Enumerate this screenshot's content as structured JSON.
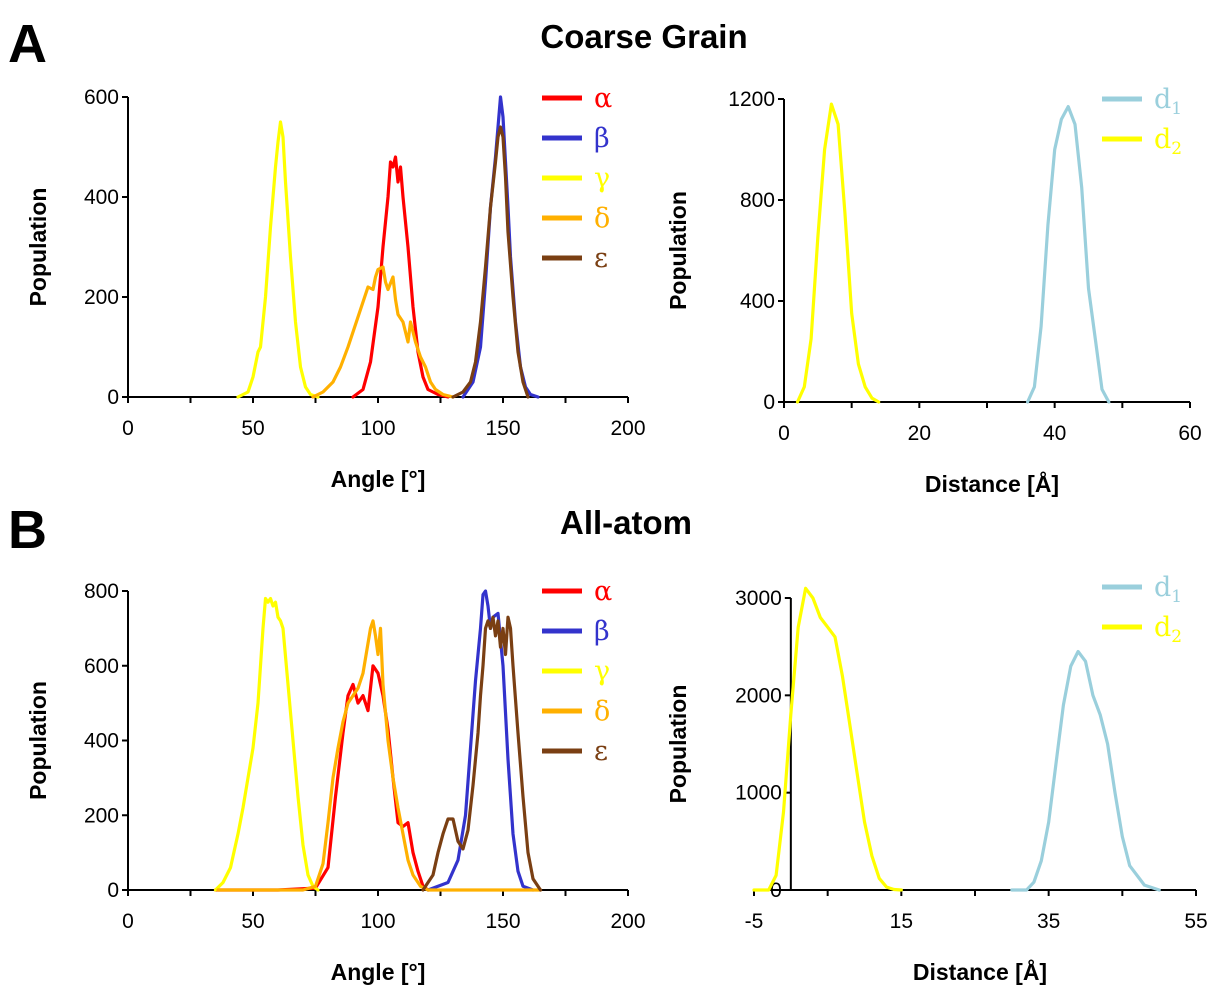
{
  "panels": {
    "A": {
      "letter": "A",
      "title": "Coarse Grain"
    },
    "B": {
      "letter": "B",
      "title": "All-atom"
    }
  },
  "chart_data": [
    {
      "id": "A-angle",
      "type": "line",
      "xlabel": "Angle [°]",
      "ylabel": "Population",
      "xlim": [
        0,
        200
      ],
      "ylim": [
        0,
        600
      ],
      "xticks": [
        0,
        50,
        100,
        150,
        200
      ],
      "yticks": [
        0,
        200,
        400,
        600
      ],
      "grid": false,
      "legend_position": "top-right",
      "series": [
        {
          "name": "α",
          "color": "#ff0000",
          "x": [
            90,
            94,
            97,
            100,
            102,
            104,
            105,
            106,
            107,
            108,
            109,
            110,
            112,
            114,
            116,
            118,
            120,
            124,
            128
          ],
          "y": [
            0,
            15,
            70,
            180,
            300,
            400,
            470,
            460,
            480,
            430,
            460,
            400,
            300,
            180,
            90,
            40,
            15,
            5,
            0
          ]
        },
        {
          "name": "β",
          "color": "#3333cc",
          "x": [
            134,
            138,
            141,
            143,
            145,
            147,
            148,
            149,
            150,
            151,
            152,
            153,
            155,
            157,
            159,
            161,
            164
          ],
          "y": [
            0,
            30,
            100,
            230,
            380,
            480,
            540,
            600,
            560,
            470,
            380,
            280,
            150,
            60,
            20,
            5,
            0
          ]
        },
        {
          "name": "γ",
          "color": "#ffff00",
          "x": [
            44,
            48,
            50,
            52,
            53,
            55,
            57,
            59,
            60,
            61,
            62,
            63,
            65,
            67,
            69,
            71,
            73,
            76
          ],
          "y": [
            0,
            10,
            40,
            90,
            100,
            200,
            340,
            460,
            510,
            550,
            520,
            430,
            280,
            150,
            60,
            20,
            5,
            0
          ]
        },
        {
          "name": "δ",
          "color": "#ffb000",
          "x": [
            74,
            78,
            82,
            85,
            88,
            90,
            92,
            94,
            96,
            98,
            99,
            100,
            102,
            103,
            104,
            106,
            107,
            108,
            110,
            112,
            113,
            115,
            117,
            119,
            121,
            123,
            126,
            130
          ],
          "y": [
            0,
            10,
            30,
            60,
            100,
            130,
            160,
            190,
            220,
            215,
            240,
            255,
            260,
            230,
            215,
            240,
            195,
            165,
            150,
            110,
            150,
            110,
            80,
            60,
            30,
            15,
            5,
            0
          ]
        },
        {
          "name": "ε",
          "color": "#7a3f13",
          "x": [
            130,
            134,
            137,
            139,
            141,
            143,
            145,
            147,
            148,
            149,
            150,
            151,
            152,
            154,
            156,
            158,
            160
          ],
          "y": [
            0,
            10,
            30,
            70,
            150,
            260,
            380,
            470,
            520,
            540,
            520,
            440,
            330,
            200,
            90,
            30,
            0
          ]
        }
      ]
    },
    {
      "id": "A-distance",
      "type": "line",
      "xlabel": "Distance [Å]",
      "ylabel": "Population",
      "xlim": [
        0,
        60
      ],
      "ylim": [
        0,
        1200
      ],
      "xticks": [
        0,
        20,
        40,
        60
      ],
      "yticks": [
        0,
        400,
        800,
        1200
      ],
      "grid": false,
      "legend_position": "top-right",
      "series": [
        {
          "name": "d",
          "sub": "1",
          "color": "#9acfdc",
          "x": [
            36,
            37,
            38,
            39,
            40,
            41,
            42,
            43,
            44,
            45,
            46,
            47,
            48
          ],
          "y": [
            0,
            60,
            300,
            700,
            1000,
            1120,
            1170,
            1100,
            850,
            450,
            250,
            50,
            0
          ]
        },
        {
          "name": "d",
          "sub": "2",
          "color": "#ffff00",
          "x": [
            2,
            3,
            4,
            5,
            6,
            7,
            8,
            9,
            10,
            11,
            12,
            13,
            14
          ],
          "y": [
            0,
            60,
            250,
            650,
            1000,
            1180,
            1100,
            750,
            350,
            150,
            60,
            15,
            0
          ]
        }
      ]
    },
    {
      "id": "B-angle",
      "type": "line",
      "xlabel": "Angle [°]",
      "ylabel": "Population",
      "xlim": [
        0,
        200
      ],
      "ylim": [
        0,
        800
      ],
      "xticks": [
        0,
        50,
        100,
        150,
        200
      ],
      "yticks": [
        0,
        200,
        400,
        600,
        800
      ],
      "grid": false,
      "legend_position": "top-right",
      "series": [
        {
          "name": "α",
          "color": "#ff0000",
          "x": [
            35,
            60,
            75,
            80,
            83,
            86,
            88,
            90,
            92,
            94,
            96,
            98,
            100,
            102,
            104,
            106,
            108,
            110,
            112,
            114,
            116,
            118,
            120
          ],
          "y": [
            0,
            0,
            5,
            60,
            250,
            420,
            520,
            550,
            500,
            520,
            480,
            600,
            580,
            520,
            430,
            300,
            180,
            170,
            180,
            100,
            50,
            10,
            0
          ]
        },
        {
          "name": "β",
          "color": "#3333cc",
          "x": [
            120,
            128,
            132,
            135,
            137,
            139,
            141,
            142,
            143,
            144,
            145,
            146,
            148,
            150,
            152,
            154,
            156,
            158,
            162
          ],
          "y": [
            0,
            20,
            80,
            200,
            380,
            560,
            700,
            790,
            800,
            760,
            700,
            730,
            740,
            600,
            350,
            150,
            50,
            10,
            0
          ]
        },
        {
          "name": "γ",
          "color": "#ffff00",
          "x": [
            35,
            38,
            41,
            44,
            46,
            48,
            50,
            52,
            54,
            55,
            56,
            57,
            58,
            59,
            60,
            61,
            62,
            64,
            66,
            68,
            70,
            72,
            74,
            76
          ],
          "y": [
            0,
            20,
            60,
            150,
            220,
            300,
            380,
            500,
            700,
            780,
            770,
            780,
            760,
            770,
            730,
            720,
            700,
            550,
            400,
            250,
            120,
            40,
            10,
            0
          ]
        },
        {
          "name": "δ",
          "color": "#ffb000",
          "x": [
            36,
            70,
            75,
            78,
            80,
            82,
            84,
            86,
            88,
            90,
            92,
            94,
            96,
            97,
            98,
            99,
            100,
            101,
            102,
            104,
            106,
            108,
            110,
            112,
            114,
            117,
            120,
            140,
            165
          ],
          "y": [
            0,
            0,
            10,
            70,
            180,
            300,
            380,
            450,
            500,
            520,
            540,
            580,
            660,
            700,
            720,
            680,
            630,
            700,
            550,
            400,
            300,
            220,
            150,
            80,
            40,
            10,
            0,
            0,
            0
          ]
        },
        {
          "name": "ε",
          "color": "#7a3f13",
          "x": [
            118,
            122,
            124,
            126,
            128,
            130,
            132,
            134,
            136,
            138,
            140,
            141,
            142,
            143,
            144,
            145,
            146,
            147,
            148,
            149,
            150,
            151,
            152,
            153,
            154,
            156,
            158,
            160,
            162,
            165
          ],
          "y": [
            0,
            40,
            100,
            150,
            190,
            190,
            130,
            110,
            160,
            280,
            420,
            520,
            600,
            700,
            720,
            700,
            730,
            680,
            720,
            650,
            700,
            630,
            730,
            700,
            600,
            420,
            250,
            100,
            30,
            0
          ]
        }
      ]
    },
    {
      "id": "B-distance",
      "type": "line",
      "xlabel": "Distance [Å]",
      "ylabel": "Population",
      "xlim": [
        -5,
        55
      ],
      "ylim": [
        0,
        3000
      ],
      "xticks": [
        -5,
        15,
        35,
        55
      ],
      "yticks": [
        0,
        1000,
        2000,
        3000
      ],
      "grid": false,
      "legend_position": "top-right",
      "series": [
        {
          "name": "d",
          "sub": "1",
          "color": "#9acfdc",
          "x": [
            30,
            32,
            33,
            34,
            35,
            36,
            37,
            38,
            39,
            40,
            41,
            42,
            43,
            44,
            45,
            46,
            48,
            50
          ],
          "y": [
            0,
            0,
            80,
            300,
            700,
            1300,
            1900,
            2300,
            2450,
            2350,
            2000,
            1800,
            1500,
            1000,
            550,
            250,
            50,
            0
          ]
        },
        {
          "name": "d",
          "sub": "2",
          "color": "#ffff00",
          "x": [
            -5,
            -3,
            -2,
            -1,
            0,
            1,
            2,
            3,
            4,
            5,
            6,
            7,
            8,
            9,
            10,
            11,
            12,
            13,
            14,
            15
          ],
          "y": [
            0,
            0,
            150,
            800,
            1800,
            2700,
            3100,
            3000,
            2800,
            2700,
            2600,
            2200,
            1700,
            1200,
            700,
            350,
            120,
            30,
            5,
            0
          ]
        }
      ]
    }
  ]
}
